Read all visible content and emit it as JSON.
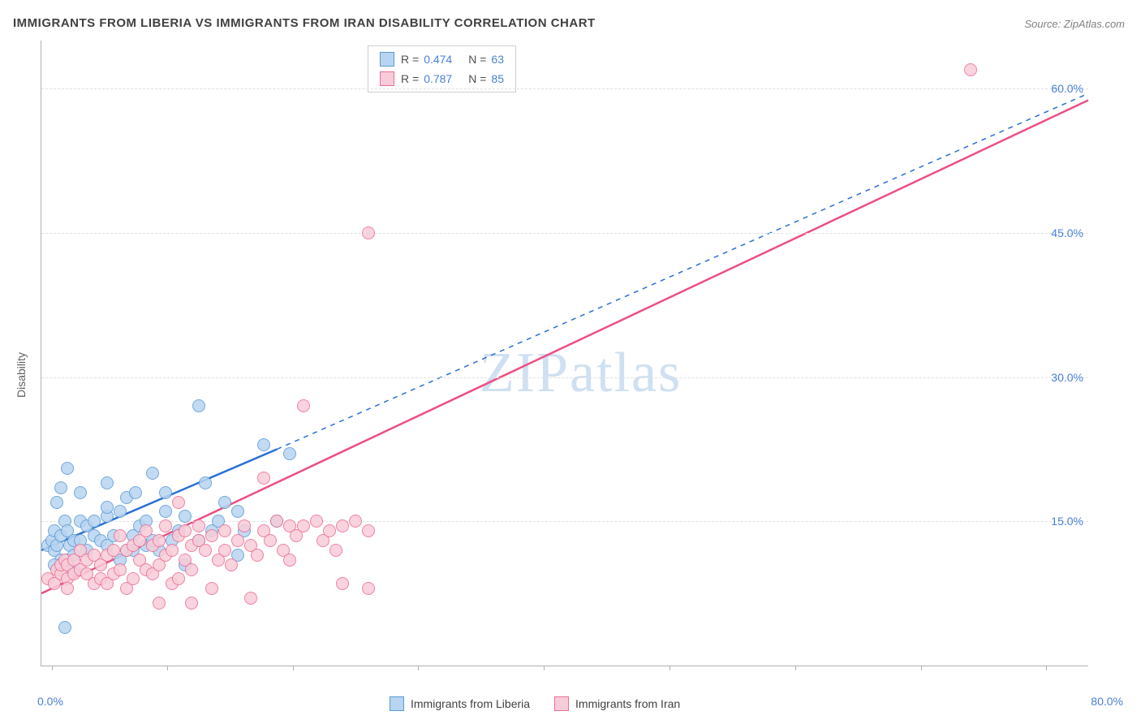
{
  "title": "IMMIGRANTS FROM LIBERIA VS IMMIGRANTS FROM IRAN DISABILITY CORRELATION CHART",
  "source": "Source: ZipAtlas.com",
  "watermark": "ZIPatlas",
  "ylabel": "Disability",
  "chart": {
    "type": "scatter",
    "xlim": [
      0,
      80
    ],
    "ylim": [
      0,
      65
    ],
    "x_tick_start": 0.0,
    "x_tick_end_label": "80.0%",
    "x_tick_positions_pct": [
      1,
      12,
      24,
      36,
      48,
      60,
      72,
      84,
      96
    ],
    "y_ticks": [
      {
        "value": 15.0,
        "label": "15.0%"
      },
      {
        "value": 30.0,
        "label": "30.0%"
      },
      {
        "value": 45.0,
        "label": "45.0%"
      },
      {
        "value": 60.0,
        "label": "60.0%"
      }
    ],
    "grid_color": "#e0e0e0",
    "axis_color": "#b0b0b0",
    "background_color": "#ffffff",
    "tick_label_color": "#4a7fd8",
    "series": [
      {
        "name": "Immigrants from Liberia",
        "color_fill": "#b8d4f0",
        "color_stroke": "#5b9bd5",
        "line_color": "#2a6fd6",
        "R": "0.474",
        "N": "63",
        "trend": {
          "x1": 0,
          "y1": 12.0,
          "x2_solid": 18,
          "y2_solid": 22.5,
          "x2_dash": 80,
          "y2_dash": 59.5
        },
        "points": [
          [
            0.5,
            12.5
          ],
          [
            0.8,
            13
          ],
          [
            1,
            12
          ],
          [
            1,
            14
          ],
          [
            1.2,
            12.5
          ],
          [
            1.5,
            11
          ],
          [
            1.5,
            13.5
          ],
          [
            1.2,
            17
          ],
          [
            1,
            10.5
          ],
          [
            1.5,
            18.5
          ],
          [
            2,
            20.5
          ],
          [
            1.8,
            15
          ],
          [
            2,
            14
          ],
          [
            2.2,
            12.5
          ],
          [
            2.5,
            13
          ],
          [
            3,
            13
          ],
          [
            2,
            11
          ],
          [
            2.5,
            10
          ],
          [
            3,
            15
          ],
          [
            3.5,
            12
          ],
          [
            3.5,
            14.5
          ],
          [
            4,
            13.5
          ],
          [
            4,
            15
          ],
          [
            4.5,
            13
          ],
          [
            5,
            12.5
          ],
          [
            5,
            19
          ],
          [
            5,
            15.5
          ],
          [
            5.5,
            13.5
          ],
          [
            6,
            16
          ],
          [
            6,
            11
          ],
          [
            6.5,
            12
          ],
          [
            7,
            12
          ],
          [
            7,
            13.5
          ],
          [
            7.5,
            14.5
          ],
          [
            8,
            15
          ],
          [
            8,
            12.5
          ],
          [
            8.5,
            20
          ],
          [
            8.5,
            13
          ],
          [
            9,
            12
          ],
          [
            9.5,
            18
          ],
          [
            9.5,
            16
          ],
          [
            10,
            13
          ],
          [
            10.5,
            14
          ],
          [
            11,
            10.5
          ],
          [
            11,
            15.5
          ],
          [
            12,
            27
          ],
          [
            12,
            13
          ],
          [
            12.5,
            19
          ],
          [
            13,
            14
          ],
          [
            13.5,
            15
          ],
          [
            14,
            17
          ],
          [
            15,
            16
          ],
          [
            15,
            11.5
          ],
          [
            15.5,
            14
          ],
          [
            17,
            23
          ],
          [
            18,
            15
          ],
          [
            19,
            22
          ],
          [
            3,
            18
          ],
          [
            1.8,
            4
          ],
          [
            5,
            16.5
          ],
          [
            6.5,
            17.5
          ],
          [
            7.2,
            18
          ],
          [
            2.5,
            11.5
          ]
        ]
      },
      {
        "name": "Immigrants from Iran",
        "color_fill": "#f8ccd8",
        "color_stroke": "#ec6d94",
        "line_color": "#ec4f83",
        "R": "0.787",
        "N": "85",
        "trend": {
          "x1": 0,
          "y1": 7.5,
          "x2_solid": 80,
          "y2_solid": 58.8
        },
        "points": [
          [
            0.5,
            9
          ],
          [
            1,
            8.5
          ],
          [
            1.2,
            10
          ],
          [
            1.5,
            9.5
          ],
          [
            1.5,
            10.5
          ],
          [
            1.8,
            11
          ],
          [
            2,
            9
          ],
          [
            2,
            10.5
          ],
          [
            2,
            8
          ],
          [
            2.5,
            11
          ],
          [
            2.5,
            9.5
          ],
          [
            3,
            10
          ],
          [
            3,
            12
          ],
          [
            3.5,
            9.5
          ],
          [
            3.5,
            11
          ],
          [
            4,
            8.5
          ],
          [
            4,
            11.5
          ],
          [
            4.5,
            9
          ],
          [
            4.5,
            10.5
          ],
          [
            5,
            11.5
          ],
          [
            5,
            8.5
          ],
          [
            5.5,
            12
          ],
          [
            5.5,
            9.5
          ],
          [
            6,
            13.5
          ],
          [
            6,
            10
          ],
          [
            6.5,
            12
          ],
          [
            6.5,
            8
          ],
          [
            7,
            12.5
          ],
          [
            7,
            9
          ],
          [
            7.5,
            11
          ],
          [
            7.5,
            13
          ],
          [
            8,
            10
          ],
          [
            8,
            14
          ],
          [
            8.5,
            12.5
          ],
          [
            8.5,
            9.5
          ],
          [
            9,
            13
          ],
          [
            9,
            10.5
          ],
          [
            9.5,
            11.5
          ],
          [
            9.5,
            14.5
          ],
          [
            10,
            12
          ],
          [
            10,
            8.5
          ],
          [
            10.5,
            13.5
          ],
          [
            10.5,
            9
          ],
          [
            11,
            14
          ],
          [
            11,
            11
          ],
          [
            11.5,
            12.5
          ],
          [
            11.5,
            10
          ],
          [
            12,
            13
          ],
          [
            12,
            14.5
          ],
          [
            12.5,
            12
          ],
          [
            13,
            13.5
          ],
          [
            13.5,
            11
          ],
          [
            14,
            14
          ],
          [
            14,
            12
          ],
          [
            14.5,
            10.5
          ],
          [
            15,
            13
          ],
          [
            15.5,
            14.5
          ],
          [
            16,
            12.5
          ],
          [
            16.5,
            11.5
          ],
          [
            17,
            14
          ],
          [
            17.5,
            13
          ],
          [
            18,
            15
          ],
          [
            18.5,
            12
          ],
          [
            19,
            14.5
          ],
          [
            19,
            11
          ],
          [
            19.5,
            13.5
          ],
          [
            20,
            14.5
          ],
          [
            20,
            27
          ],
          [
            21,
            15
          ],
          [
            21.5,
            13
          ],
          [
            22,
            14
          ],
          [
            22.5,
            12
          ],
          [
            23,
            14.5
          ],
          [
            23,
            8.5
          ],
          [
            24,
            15
          ],
          [
            25,
            8
          ],
          [
            25,
            14
          ],
          [
            17,
            19.5
          ],
          [
            9,
            6.5
          ],
          [
            16,
            7
          ],
          [
            11.5,
            6.5
          ],
          [
            25,
            45
          ],
          [
            71,
            62
          ],
          [
            10.5,
            17
          ],
          [
            13,
            8
          ]
        ]
      }
    ]
  },
  "legend_top": {
    "r_label": "R =",
    "n_label": "N ="
  },
  "bottom_legend": {
    "liberia": "Immigrants from Liberia",
    "iran": "Immigrants from Iran"
  }
}
